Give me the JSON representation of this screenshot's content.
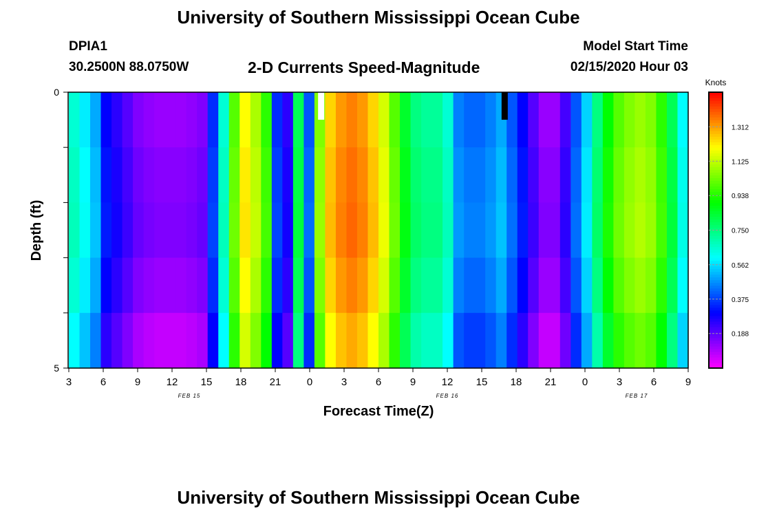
{
  "header": {
    "title": "University of Southern Mississippi Ocean Cube",
    "station": "DPIA1",
    "coords": "30.2500N 88.0750W",
    "plot_title": "2-D Currents Speed-Magnitude",
    "start_label": "Model Start Time",
    "start_value": "02/15/2020 Hour 03"
  },
  "footer": {
    "title": "University of Southern Mississippi Ocean Cube"
  },
  "chart_data": {
    "type": "heatmap",
    "title": "2-D Currents Speed-Magnitude",
    "xlabel": "Forecast Time(Z)",
    "ylabel": "Depth (ft)",
    "ylim": [
      0,
      5
    ],
    "y_ticks": [
      "0",
      "5"
    ],
    "x_range_hours": [
      0,
      54
    ],
    "x_ticks": [
      {
        "h": 0,
        "label": "3"
      },
      {
        "h": 3,
        "label": "6"
      },
      {
        "h": 6,
        "label": "9"
      },
      {
        "h": 9,
        "label": "12"
      },
      {
        "h": 12,
        "label": "15"
      },
      {
        "h": 15,
        "label": "18"
      },
      {
        "h": 18,
        "label": "21"
      },
      {
        "h": 21,
        "label": "0"
      },
      {
        "h": 24,
        "label": "3"
      },
      {
        "h": 27,
        "label": "6"
      },
      {
        "h": 30,
        "label": "9"
      },
      {
        "h": 33,
        "label": "12"
      },
      {
        "h": 36,
        "label": "15"
      },
      {
        "h": 39,
        "label": "18"
      },
      {
        "h": 42,
        "label": "21"
      },
      {
        "h": 45,
        "label": "0"
      },
      {
        "h": 48,
        "label": "3"
      },
      {
        "h": 51,
        "label": "6"
      },
      {
        "h": 54,
        "label": "9"
      }
    ],
    "date_labels": [
      {
        "h": 10.5,
        "label": "FEB 15"
      },
      {
        "h": 33,
        "label": "FEB 16"
      },
      {
        "h": 49.5,
        "label": "FEB 17"
      }
    ],
    "colorbar": {
      "unit": "Knots",
      "range": [
        0,
        1.5
      ],
      "ticks": [
        "0.188",
        "0.375",
        "0.562",
        "0.750",
        "0.938",
        "1.125",
        "1.312"
      ]
    },
    "layers": 5,
    "profile": [
      0.65,
      0.58,
      0.5,
      0.3,
      0.25,
      0.2,
      0.15,
      0.13,
      0.12,
      0.12,
      0.12,
      0.13,
      0.15,
      0.35,
      0.65,
      1.0,
      1.2,
      1.1,
      0.95,
      0.35,
      0.25,
      0.8,
      0.4,
      1.05,
      1.25,
      1.32,
      1.35,
      1.32,
      1.25,
      1.15,
      1.0,
      0.85,
      0.75,
      0.72,
      0.72,
      0.65,
      0.45,
      0.42,
      0.42,
      0.45,
      0.5,
      0.4,
      0.3,
      0.2,
      0.12,
      0.12,
      0.22,
      0.4,
      0.55,
      0.75,
      0.9,
      1.0,
      1.05,
      1.08,
      1.05,
      0.95,
      0.8,
      0.6
    ],
    "layer_offsets": [
      0.0,
      0.02,
      0.03,
      0.0,
      -0.05
    ],
    "flags": [
      {
        "h": 22,
        "color": "#ffffff"
      },
      {
        "h": 38,
        "color": "#000000"
      }
    ]
  }
}
